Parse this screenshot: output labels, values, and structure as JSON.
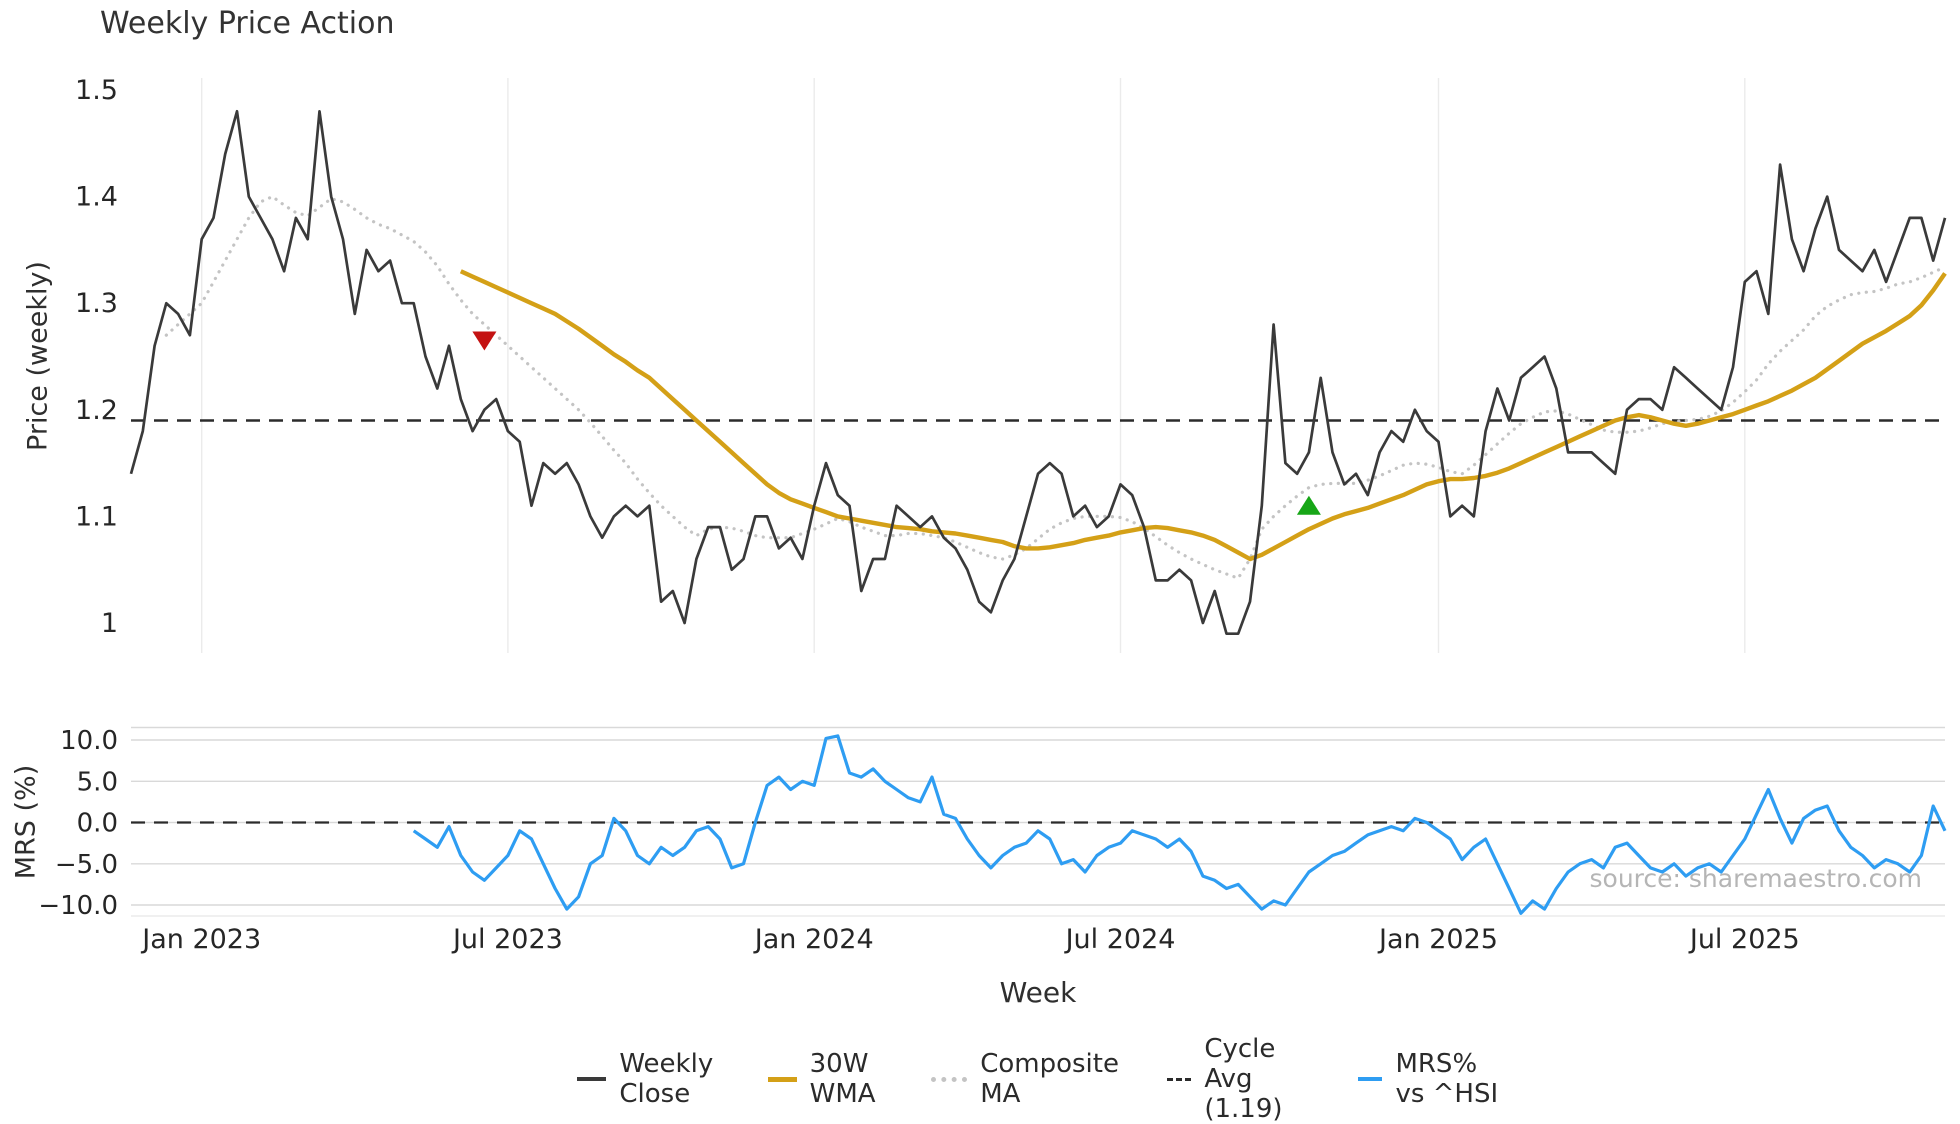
{
  "title": "Weekly Price Action",
  "xlabel": "Week",
  "source": "source: sharemaestro.com",
  "legend_position": "bottom-center",
  "n_weeks": 155,
  "x_ticks": [
    {
      "index": 6,
      "label": "Jan 2023"
    },
    {
      "index": 32,
      "label": "Jul 2023"
    },
    {
      "index": 58,
      "label": "Jan 2024"
    },
    {
      "index": 84,
      "label": "Jul 2024"
    },
    {
      "index": 111,
      "label": "Jan 2025"
    },
    {
      "index": 137,
      "label": "Jul 2025"
    }
  ],
  "legend": [
    {
      "label": "Weekly Close",
      "color": "#3a3a3a",
      "style": "solid"
    },
    {
      "label": "30W WMA",
      "color": "#d4a017",
      "style": "solid"
    },
    {
      "label": "Composite MA",
      "color": "#c4c4c4",
      "style": "dotted"
    },
    {
      "label": "Cycle Avg (1.19)",
      "color": "#2b2b2b",
      "style": "dashed"
    },
    {
      "label": "MRS% vs ^HSI",
      "color": "#2e9df2",
      "style": "solid"
    }
  ],
  "chart_data": [
    {
      "type": "line",
      "panel": "price",
      "title": "Weekly Price Action",
      "ylabel": "Price (weekly)",
      "ylim": [
        0.97,
        1.51
      ],
      "yticks": [
        1,
        1.1,
        1.2,
        1.3,
        1.4,
        1.5
      ],
      "ytick_labels": [
        "1",
        "1.1",
        "1.2",
        "1.3",
        "1.4",
        "1.5"
      ],
      "grid": "vertical",
      "hline": {
        "label": "Cycle Avg (1.19)",
        "value": 1.19,
        "style": "dashed",
        "color": "#2b2b2b"
      },
      "markers": [
        {
          "name": "bearish-cross-marker",
          "shape": "triangle-down",
          "color": "#c41212",
          "index": 30,
          "value": 1.265
        },
        {
          "name": "bullish-cross-marker",
          "shape": "triangle-up",
          "color": "#17a617",
          "index": 100,
          "value": 1.11
        }
      ],
      "series": [
        {
          "name": "Weekly Close",
          "color": "#3a3a3a",
          "style": "solid",
          "start_index": 0,
          "values": [
            1.14,
            1.18,
            1.26,
            1.3,
            1.29,
            1.27,
            1.36,
            1.38,
            1.44,
            1.48,
            1.4,
            1.38,
            1.36,
            1.33,
            1.38,
            1.36,
            1.48,
            1.4,
            1.36,
            1.29,
            1.35,
            1.33,
            1.34,
            1.3,
            1.3,
            1.25,
            1.22,
            1.26,
            1.21,
            1.18,
            1.2,
            1.21,
            1.18,
            1.17,
            1.11,
            1.15,
            1.14,
            1.15,
            1.13,
            1.1,
            1.08,
            1.1,
            1.11,
            1.1,
            1.11,
            1.02,
            1.03,
            1.0,
            1.06,
            1.09,
            1.09,
            1.05,
            1.06,
            1.1,
            1.1,
            1.07,
            1.08,
            1.06,
            1.11,
            1.15,
            1.12,
            1.11,
            1.03,
            1.06,
            1.06,
            1.11,
            1.1,
            1.09,
            1.1,
            1.08,
            1.07,
            1.05,
            1.02,
            1.01,
            1.04,
            1.06,
            1.1,
            1.14,
            1.15,
            1.14,
            1.1,
            1.11,
            1.09,
            1.1,
            1.13,
            1.12,
            1.09,
            1.04,
            1.04,
            1.05,
            1.04,
            1.0,
            1.03,
            0.99,
            0.99,
            1.02,
            1.11,
            1.28,
            1.15,
            1.14,
            1.16,
            1.23,
            1.16,
            1.13,
            1.14,
            1.12,
            1.16,
            1.18,
            1.17,
            1.2,
            1.18,
            1.17,
            1.1,
            1.11,
            1.1,
            1.18,
            1.22,
            1.19,
            1.23,
            1.24,
            1.25,
            1.22,
            1.16,
            1.16,
            1.16,
            1.15,
            1.14,
            1.2,
            1.21,
            1.21,
            1.2,
            1.24,
            1.23,
            1.22,
            1.21,
            1.2,
            1.24,
            1.32,
            1.33,
            1.29,
            1.43,
            1.36,
            1.33,
            1.37,
            1.4,
            1.35,
            1.34,
            1.33,
            1.35,
            1.32,
            1.35,
            1.38,
            1.38,
            1.34,
            1.38
          ]
        },
        {
          "name": "30W WMA",
          "color": "#d4a017",
          "style": "solid",
          "start_index": 28,
          "values": [
            1.33,
            1.325,
            1.32,
            1.315,
            1.31,
            1.305,
            1.3,
            1.295,
            1.29,
            1.283,
            1.276,
            1.268,
            1.26,
            1.252,
            1.245,
            1.237,
            1.23,
            1.22,
            1.21,
            1.2,
            1.19,
            1.18,
            1.17,
            1.16,
            1.15,
            1.14,
            1.13,
            1.122,
            1.116,
            1.112,
            1.108,
            1.104,
            1.1,
            1.098,
            1.096,
            1.094,
            1.092,
            1.09,
            1.089,
            1.088,
            1.086,
            1.085,
            1.084,
            1.082,
            1.08,
            1.078,
            1.076,
            1.072,
            1.07,
            1.07,
            1.071,
            1.073,
            1.075,
            1.078,
            1.08,
            1.082,
            1.085,
            1.087,
            1.089,
            1.09,
            1.089,
            1.087,
            1.085,
            1.082,
            1.078,
            1.072,
            1.066,
            1.06,
            1.064,
            1.07,
            1.076,
            1.082,
            1.088,
            1.093,
            1.098,
            1.102,
            1.105,
            1.108,
            1.112,
            1.116,
            1.12,
            1.125,
            1.13,
            1.133,
            1.135,
            1.135,
            1.136,
            1.138,
            1.141,
            1.145,
            1.15,
            1.155,
            1.16,
            1.165,
            1.17,
            1.175,
            1.18,
            1.185,
            1.19,
            1.193,
            1.195,
            1.193,
            1.19,
            1.187,
            1.185,
            1.187,
            1.19,
            1.193,
            1.196,
            1.2,
            1.204,
            1.208,
            1.213,
            1.218,
            1.224,
            1.23,
            1.238,
            1.246,
            1.254,
            1.262,
            1.268,
            1.274,
            1.281,
            1.288,
            1.298,
            1.312,
            1.328
          ]
        },
        {
          "name": "Composite MA",
          "color": "#c4c4c4",
          "style": "dotted",
          "start_index": 3,
          "values": [
            1.27,
            1.28,
            1.29,
            1.3,
            1.32,
            1.34,
            1.36,
            1.38,
            1.395,
            1.4,
            1.392,
            1.385,
            1.382,
            1.39,
            1.398,
            1.395,
            1.388,
            1.38,
            1.374,
            1.37,
            1.364,
            1.358,
            1.348,
            1.335,
            1.318,
            1.303,
            1.29,
            1.28,
            1.27,
            1.26,
            1.25,
            1.24,
            1.23,
            1.22,
            1.21,
            1.2,
            1.188,
            1.175,
            1.162,
            1.15,
            1.135,
            1.122,
            1.11,
            1.1,
            1.09,
            1.082,
            1.088,
            1.09,
            1.089,
            1.086,
            1.082,
            1.08,
            1.08,
            1.08,
            1.084,
            1.088,
            1.093,
            1.098,
            1.095,
            1.09,
            1.086,
            1.082,
            1.082,
            1.084,
            1.084,
            1.082,
            1.08,
            1.076,
            1.071,
            1.066,
            1.062,
            1.06,
            1.064,
            1.07,
            1.079,
            1.088,
            1.094,
            1.098,
            1.1,
            1.1,
            1.1,
            1.099,
            1.095,
            1.089,
            1.081,
            1.073,
            1.066,
            1.06,
            1.055,
            1.05,
            1.046,
            1.042,
            1.06,
            1.088,
            1.1,
            1.11,
            1.119,
            1.127,
            1.13,
            1.131,
            1.131,
            1.131,
            1.134,
            1.138,
            1.143,
            1.148,
            1.15,
            1.149,
            1.146,
            1.142,
            1.14,
            1.148,
            1.158,
            1.168,
            1.178,
            1.187,
            1.193,
            1.198,
            1.199,
            1.196,
            1.191,
            1.186,
            1.181,
            1.179,
            1.179,
            1.18,
            1.183,
            1.187,
            1.189,
            1.19,
            1.191,
            1.194,
            1.199,
            1.207,
            1.217,
            1.228,
            1.243,
            1.255,
            1.265,
            1.275,
            1.288,
            1.297,
            1.303,
            1.308,
            1.31,
            1.311,
            1.314,
            1.318,
            1.32,
            1.324,
            1.329,
            1.334
          ]
        }
      ]
    },
    {
      "type": "line",
      "panel": "mrs",
      "ylabel": "MRS (%)",
      "ylim": [
        -11.5,
        11.5
      ],
      "yticks": [
        10,
        5,
        0,
        -5,
        -10
      ],
      "ytick_labels": [
        "10.0",
        "5.0",
        "0.0",
        "−5.0",
        "−10.0"
      ],
      "grid": "horizontal",
      "hline": {
        "label": "zero-line",
        "value": 0,
        "style": "dashed",
        "color": "#2b2b2b"
      },
      "series": [
        {
          "name": "MRS% vs ^HSI",
          "color": "#2e9df2",
          "style": "solid",
          "start_index": 24,
          "values": [
            -1.0,
            -2.0,
            -3.0,
            -0.5,
            -4.0,
            -6.0,
            -7.0,
            -5.5,
            -4.0,
            -1.0,
            -2.0,
            -5.0,
            -8.0,
            -10.5,
            -9.0,
            -5.0,
            -4.0,
            0.5,
            -1.0,
            -4.0,
            -5.0,
            -3.0,
            -4.0,
            -3.0,
            -1.0,
            -0.5,
            -2.0,
            -5.5,
            -5.0,
            0.0,
            4.5,
            5.5,
            4.0,
            5.0,
            4.5,
            10.2,
            10.5,
            6.0,
            5.5,
            6.5,
            5.0,
            4.0,
            3.0,
            2.5,
            5.5,
            1.0,
            0.5,
            -2.0,
            -4.0,
            -5.5,
            -4.0,
            -3.0,
            -2.5,
            -1.0,
            -2.0,
            -5.0,
            -4.5,
            -6.0,
            -4.0,
            -3.0,
            -2.5,
            -1.0,
            -1.5,
            -2.0,
            -3.0,
            -2.0,
            -3.5,
            -6.5,
            -7.0,
            -8.0,
            -7.5,
            -9.0,
            -10.5,
            -9.5,
            -10.0,
            -8.0,
            -6.0,
            -5.0,
            -4.0,
            -3.5,
            -2.5,
            -1.5,
            -1.0,
            -0.5,
            -1.0,
            0.5,
            0.0,
            -1.0,
            -2.0,
            -4.5,
            -3.0,
            -2.0,
            -5.0,
            -8.0,
            -11.0,
            -9.5,
            -10.5,
            -8.0,
            -6.0,
            -5.0,
            -4.5,
            -5.5,
            -3.0,
            -2.5,
            -4.0,
            -5.5,
            -6.0,
            -5.0,
            -6.5,
            -5.5,
            -5.0,
            -6.0,
            -4.0,
            -2.0,
            1.0,
            4.0,
            0.5,
            -2.5,
            0.5,
            1.5,
            2.0,
            -1.0,
            -3.0,
            -4.0,
            -5.5,
            -4.5,
            -5.0,
            -6.0,
            -4.0,
            2.0,
            -1.0
          ]
        }
      ]
    }
  ]
}
